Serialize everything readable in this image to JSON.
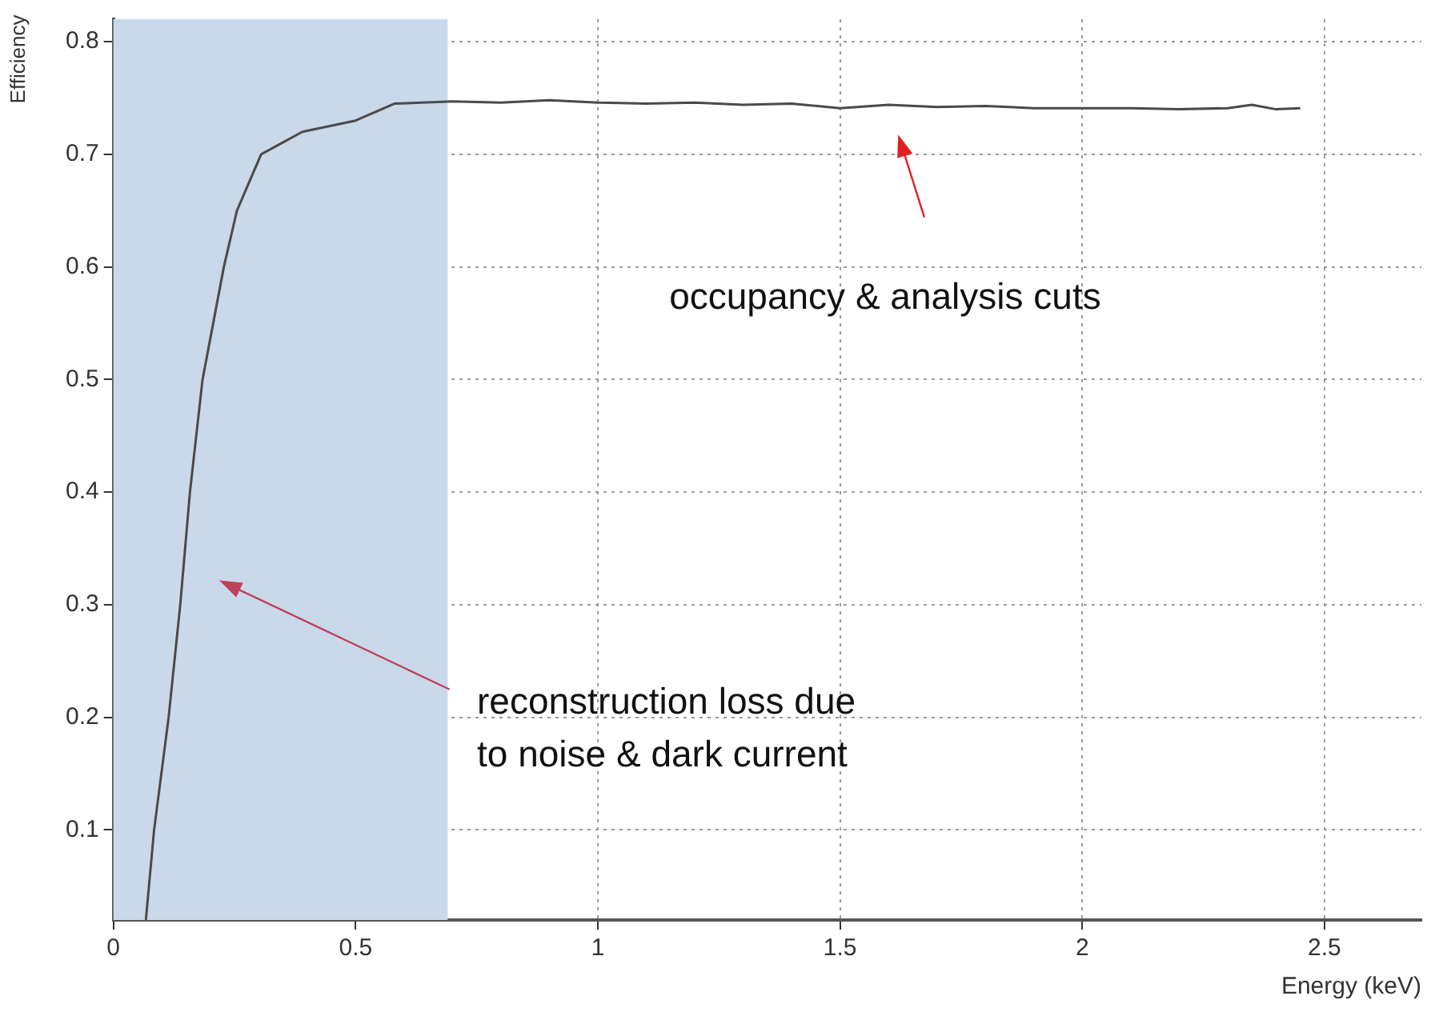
{
  "chart_data": {
    "type": "line",
    "xlabel": "Energy (keV)",
    "ylabel": "Efficiency",
    "series": [
      {
        "color": "#4a4a4a",
        "x": [
          0.067,
          0.084,
          0.114,
          0.138,
          0.158,
          0.184,
          0.228,
          0.255,
          0.305,
          0.39,
          0.5,
          0.58,
          0.7,
          0.8,
          0.9,
          1.0,
          1.1,
          1.2,
          1.3,
          1.4,
          1.5,
          1.6,
          1.7,
          1.8,
          1.9,
          2.0,
          2.1,
          2.2,
          2.3,
          2.35,
          2.4,
          2.45
        ],
        "values": [
          0.02,
          0.1,
          0.2,
          0.3,
          0.4,
          0.5,
          0.6,
          0.65,
          0.7,
          0.72,
          0.73,
          0.745,
          0.747,
          0.746,
          0.748,
          0.746,
          0.745,
          0.746,
          0.744,
          0.745,
          0.741,
          0.744,
          0.742,
          0.743,
          0.741,
          0.741,
          0.741,
          0.74,
          0.741,
          0.744,
          0.74,
          0.741
        ]
      }
    ],
    "xlim": [
      0,
      2.7
    ],
    "ylim": [
      0.02,
      0.82
    ],
    "xticks": [
      0,
      0.5,
      1,
      1.5,
      2,
      2.5
    ],
    "yticks": [
      0.1,
      0.2,
      0.3,
      0.4,
      0.5,
      0.6,
      0.7,
      0.8
    ],
    "grid": true,
    "marker": "none",
    "line_style": "solid",
    "legend": false,
    "bands": [
      {
        "axis": "x",
        "from": 0,
        "to": 0.69,
        "color": "#c9d9ea"
      }
    ],
    "annotations": [
      "occupancy & analysis cuts",
      "reconstruction loss due\nto noise & dark current"
    ]
  }
}
